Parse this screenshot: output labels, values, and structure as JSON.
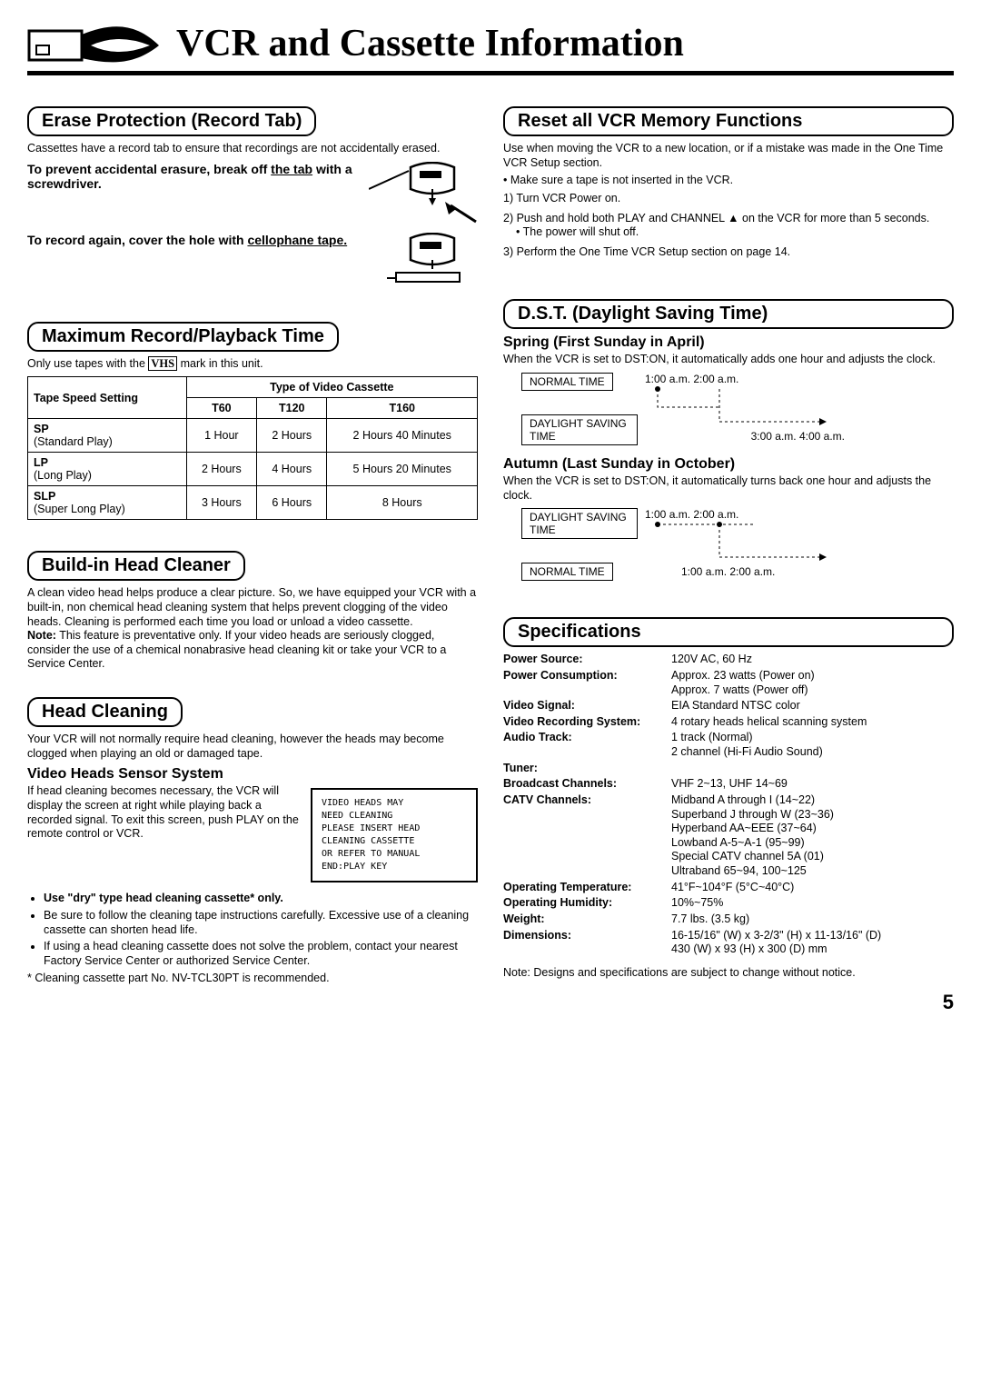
{
  "pageTitle": "VCR and Cassette Information",
  "pageNumber": "5",
  "leftCol": {
    "erase": {
      "head": "Erase Protection (Record Tab)",
      "intro": "Cassettes have a record tab to ensure that recordings are not accidentally erased.",
      "prevent1": "To prevent accidental erasure, break off ",
      "prevent1u": "the tab",
      "prevent1b": " with a screwdriver.",
      "record1": "To record again, cover the hole with ",
      "record1u": "cellophane tape."
    },
    "maxrec": {
      "head": "Maximum Record/Playback Time",
      "intro1": "Only use tapes with the ",
      "vhs": "VHS",
      "intro2": " mark in this unit.",
      "colHead": "Type of Video Cassette",
      "rowHead": "Tape Speed Setting",
      "cols": [
        "T60",
        "T120",
        "T160"
      ],
      "rows": [
        {
          "label": "SP",
          "sub": "(Standard Play)",
          "vals": [
            "1 Hour",
            "2 Hours",
            "2 Hours 40 Minutes"
          ]
        },
        {
          "label": "LP",
          "sub": "(Long Play)",
          "vals": [
            "2 Hours",
            "4 Hours",
            "5 Hours 20 Minutes"
          ]
        },
        {
          "label": "SLP",
          "sub": "(Super Long Play)",
          "vals": [
            "3 Hours",
            "6 Hours",
            "8 Hours"
          ]
        }
      ]
    },
    "builtin": {
      "head": "Build-in Head Cleaner",
      "body": "A clean video head helps produce a clear picture. So, we have equipped your VCR with a built-in, non chemical head cleaning system that helps prevent clogging of the video heads. Cleaning is performed each time you load or unload a video cassette.",
      "noteLabel": "Note:",
      "note": "This feature is preventative only. If your video heads are seriously clogged, consider the use of a chemical nonabrasive head cleaning kit or take your VCR to a Service Center."
    },
    "clean": {
      "head": "Head Cleaning",
      "intro": "Your VCR will not normally require head cleaning, however the heads may become clogged when playing an old or damaged tape.",
      "subhead": "Video Heads Sensor System",
      "body": "If head cleaning becomes necessary, the VCR will display the screen at right while playing back a recorded signal. To exit this screen, push PLAY on the remote control or VCR.",
      "screen": [
        "VIDEO HEADS MAY",
        "NEED CLEANING",
        "PLEASE INSERT HEAD",
        "CLEANING CASSETTE",
        "OR REFER TO MANUAL",
        "",
        "END:PLAY KEY"
      ],
      "bullets": [
        {
          "bold": "Use \"dry\" type head cleaning cassette* only.",
          "rest": ""
        },
        {
          "bold": "",
          "rest": "Be sure to follow the cleaning tape instructions carefully. Excessive use of a cleaning cassette can shorten head life."
        },
        {
          "bold": "",
          "rest": "If using a head cleaning cassette does not solve the problem, contact your nearest Factory Service Center or authorized Service Center."
        }
      ],
      "footnote": "* Cleaning cassette part No. NV-TCL30PT is recommended."
    }
  },
  "rightCol": {
    "reset": {
      "head": "Reset all VCR Memory Functions",
      "intro": "Use when moving the VCR to a new location, or if a mistake was made in the One Time VCR Setup section.",
      "pre": "• Make sure a tape is not inserted in the VCR.",
      "steps": [
        "1) Turn VCR Power on.",
        "2) Push and hold both PLAY and CHANNEL ▲ on the VCR for more than 5 seconds.",
        "   • The power will shut off.",
        "3) Perform the One Time VCR Setup section on page 14."
      ]
    },
    "dst": {
      "head": "D.S.T. (Daylight Saving Time)",
      "spring": {
        "title": "Spring (First Sunday in April)",
        "body": "When the VCR is set to DST:ON, it automatically adds one hour and adjusts the clock.",
        "normal": "NORMAL TIME",
        "normalTimes": "1:00 a.m.   2:00 a.m.",
        "dst": "DAYLIGHT SAVING TIME",
        "dstTimes": "3:00 a.m.   4:00 a.m."
      },
      "autumn": {
        "title": "Autumn (Last Sunday in October)",
        "body": "When the VCR is set to DST:ON, it automatically turns back one hour and adjusts the clock.",
        "dst": "DAYLIGHT SAVING TIME",
        "dstTimes": "1:00 a.m.   2:00 a.m.",
        "normal": "NORMAL TIME",
        "normalTimes": "1:00 a.m.   2:00 a.m."
      }
    },
    "spec": {
      "head": "Specifications",
      "rows": [
        {
          "label": "Power Source:",
          "val": "120V AC, 60 Hz"
        },
        {
          "label": "Power Consumption:",
          "val": "Approx. 23 watts (Power on)\nApprox. 7 watts (Power off)"
        },
        {
          "label": "Video Signal:",
          "val": "EIA Standard NTSC color"
        },
        {
          "label": "Video Recording System:",
          "val": "4 rotary heads helical scanning system"
        },
        {
          "label": "Audio Track:",
          "val": "1 track (Normal)\n2 channel (Hi-Fi Audio Sound)"
        },
        {
          "label": "Tuner:",
          "val": ""
        },
        {
          "label": "Broadcast Channels:",
          "val": "VHF 2~13, UHF 14~69"
        },
        {
          "label": "CATV Channels:",
          "val": "Midband A through I (14~22)\nSuperband J through W (23~36)\nHyperband AA~EEE (37~64)\nLowband A-5~A-1 (95~99)\nSpecial CATV channel 5A (01)\nUltraband 65~94, 100~125"
        },
        {
          "label": "Operating Temperature:",
          "val": "41°F~104°F (5°C~40°C)"
        },
        {
          "label": "Operating Humidity:",
          "val": "10%~75%"
        },
        {
          "label": "Weight:",
          "val": "7.7 lbs. (3.5 kg)"
        },
        {
          "label": "Dimensions:",
          "val": "16-15/16\" (W) x 3-2/3\" (H) x 11-13/16\" (D)\n430 (W) x 93 (H) x 300 (D) mm"
        }
      ],
      "note": "Note: Designs and specifications are subject to change without notice."
    }
  }
}
